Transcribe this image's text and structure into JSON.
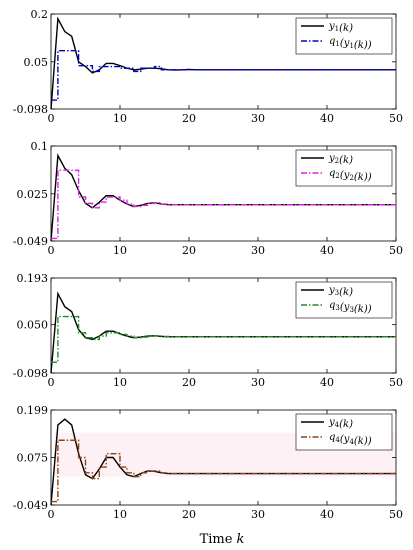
{
  "chart_data": {
    "type": "line",
    "xlabel_text": "Time ",
    "xlabel_var": "k",
    "xlim": [
      0,
      50
    ],
    "x_ticks": [
      "0",
      "10",
      "20",
      "30",
      "40",
      "50"
    ],
    "panels": [
      {
        "ylim": [
          -0.098,
          0.2
        ],
        "y_ticks": [
          "0.2",
          "0.05",
          "-0.098"
        ],
        "legend": [
          "y1(k)",
          "q1(y1(k))"
        ],
        "legend_placement": "top-right",
        "series": [
          {
            "name": "y1(k)",
            "style": "solid",
            "color": "#000000",
            "x": [
              0,
              1,
              2,
              3,
              4,
              5,
              6,
              7,
              8,
              9,
              10,
              11,
              12,
              13,
              14,
              15,
              16,
              17,
              18,
              19,
              20,
              21,
              22,
              23,
              24,
              25,
              50
            ],
            "values": [
              -0.098,
              0.185,
              0.145,
              0.13,
              0.05,
              0.035,
              0.015,
              0.025,
              0.045,
              0.045,
              0.038,
              0.03,
              0.025,
              0.027,
              0.03,
              0.03,
              0.028,
              0.025,
              0.024,
              0.025,
              0.026,
              0.025,
              0.025,
              0.025,
              0.025,
              0.025,
              0.025
            ]
          },
          {
            "name": "q1(y1(k))",
            "style": "dashdot",
            "color": "#0000CC",
            "x": [
              0,
              1,
              2,
              3,
              4,
              5,
              6,
              7,
              8,
              9,
              10,
              11,
              12,
              13,
              14,
              15,
              16,
              17,
              18,
              19,
              20,
              21,
              22,
              23,
              24,
              25,
              50
            ],
            "values": [
              -0.07,
              0.085,
              0.085,
              0.085,
              0.038,
              0.038,
              0.02,
              0.035,
              0.035,
              0.035,
              0.03,
              0.03,
              0.02,
              0.03,
              0.03,
              0.035,
              0.025,
              0.025,
              0.025,
              0.025,
              0.025,
              0.025,
              0.025,
              0.025,
              0.025,
              0.025,
              0.025
            ]
          }
        ]
      },
      {
        "ylim": [
          -0.049,
          0.1
        ],
        "y_ticks": [
          "0.1",
          "0.025",
          "-0.049"
        ],
        "legend": [
          "y2(k)",
          "q2(y2(k))"
        ],
        "legend_placement": "top-right",
        "series": [
          {
            "name": "y2(k)",
            "style": "solid",
            "color": "#000000",
            "x": [
              0,
              1,
              2,
              3,
              4,
              5,
              6,
              7,
              8,
              9,
              10,
              11,
              12,
              13,
              14,
              15,
              16,
              17,
              18,
              19,
              20,
              21,
              22,
              50
            ],
            "values": [
              -0.049,
              0.085,
              0.065,
              0.055,
              0.03,
              0.01,
              0.003,
              0.012,
              0.022,
              0.022,
              0.015,
              0.009,
              0.005,
              0.007,
              0.01,
              0.011,
              0.009,
              0.008,
              0.008,
              0.008,
              0.008,
              0.008,
              0.008,
              0.008
            ]
          },
          {
            "name": "q2(y2(k))",
            "style": "dashdot",
            "color": "#E020E0",
            "x": [
              0,
              1,
              2,
              3,
              4,
              5,
              6,
              7,
              8,
              9,
              10,
              11,
              12,
              13,
              14,
              15,
              16,
              17,
              18,
              19,
              20,
              21,
              22,
              50
            ],
            "values": [
              -0.045,
              0.062,
              0.062,
              0.062,
              0.02,
              0.01,
              0.003,
              0.012,
              0.02,
              0.02,
              0.015,
              0.009,
              0.005,
              0.007,
              0.01,
              0.011,
              0.009,
              0.008,
              0.008,
              0.008,
              0.008,
              0.008,
              0.008,
              0.008
            ]
          }
        ]
      },
      {
        "ylim": [
          -0.098,
          0.193
        ],
        "y_ticks": [
          "0.193",
          "0.050",
          "-0.098"
        ],
        "legend": [
          "y3(k)",
          "q3(y3(k))"
        ],
        "legend_placement": "top-right",
        "series": [
          {
            "name": "y3(k)",
            "style": "solid",
            "color": "#000000",
            "x": [
              0,
              1,
              2,
              3,
              4,
              5,
              6,
              7,
              8,
              9,
              10,
              11,
              12,
              13,
              14,
              15,
              16,
              17,
              18,
              19,
              20,
              21,
              22,
              50
            ],
            "values": [
              -0.098,
              0.145,
              0.105,
              0.09,
              0.035,
              0.01,
              0.005,
              0.015,
              0.03,
              0.03,
              0.022,
              0.015,
              0.01,
              0.012,
              0.015,
              0.016,
              0.014,
              0.013,
              0.013,
              0.013,
              0.013,
              0.013,
              0.013,
              0.013
            ]
          },
          {
            "name": "q3(y3(k))",
            "style": "dashdot",
            "color": "#228B22",
            "x": [
              0,
              1,
              2,
              3,
              4,
              5,
              6,
              7,
              8,
              9,
              10,
              11,
              12,
              13,
              14,
              15,
              16,
              17,
              18,
              19,
              20,
              21,
              22,
              50
            ],
            "values": [
              -0.065,
              0.075,
              0.075,
              0.075,
              0.025,
              0.01,
              0.005,
              0.015,
              0.025,
              0.025,
              0.02,
              0.015,
              0.01,
              0.012,
              0.015,
              0.016,
              0.014,
              0.013,
              0.013,
              0.013,
              0.013,
              0.013,
              0.013,
              0.013
            ]
          }
        ]
      },
      {
        "ylim": [
          -0.049,
          0.199
        ],
        "y_ticks": [
          "0.199",
          "0.075",
          "-0.049"
        ],
        "legend": [
          "y4(k)",
          "q4(y4(k))"
        ],
        "legend_placement": "top-right",
        "series": [
          {
            "name": "y4(k)",
            "style": "solid",
            "color": "#000000",
            "x": [
              0,
              1,
              2,
              3,
              4,
              5,
              6,
              7,
              8,
              9,
              10,
              11,
              12,
              13,
              14,
              15,
              16,
              17,
              18,
              19,
              20,
              21,
              22,
              50
            ],
            "values": [
              -0.049,
              0.16,
              0.175,
              0.16,
              0.085,
              0.03,
              0.02,
              0.045,
              0.075,
              0.075,
              0.05,
              0.03,
              0.025,
              0.033,
              0.04,
              0.039,
              0.035,
              0.033,
              0.033,
              0.033,
              0.033,
              0.033,
              0.033,
              0.033
            ]
          },
          {
            "name": "q4(y4(k))",
            "style": "dashdot",
            "color": "#8B4513",
            "x": [
              0,
              1,
              2,
              3,
              4,
              5,
              6,
              7,
              8,
              9,
              10,
              11,
              12,
              13,
              14,
              15,
              16,
              17,
              18,
              19,
              20,
              21,
              22,
              50
            ],
            "values": [
              -0.04,
              0.12,
              0.12,
              0.12,
              0.075,
              0.035,
              0.02,
              0.05,
              0.085,
              0.085,
              0.05,
              0.035,
              0.025,
              0.035,
              0.04,
              0.04,
              0.035,
              0.033,
              0.033,
              0.033,
              0.033,
              0.033,
              0.033,
              0.033
            ]
          }
        ]
      }
    ]
  }
}
